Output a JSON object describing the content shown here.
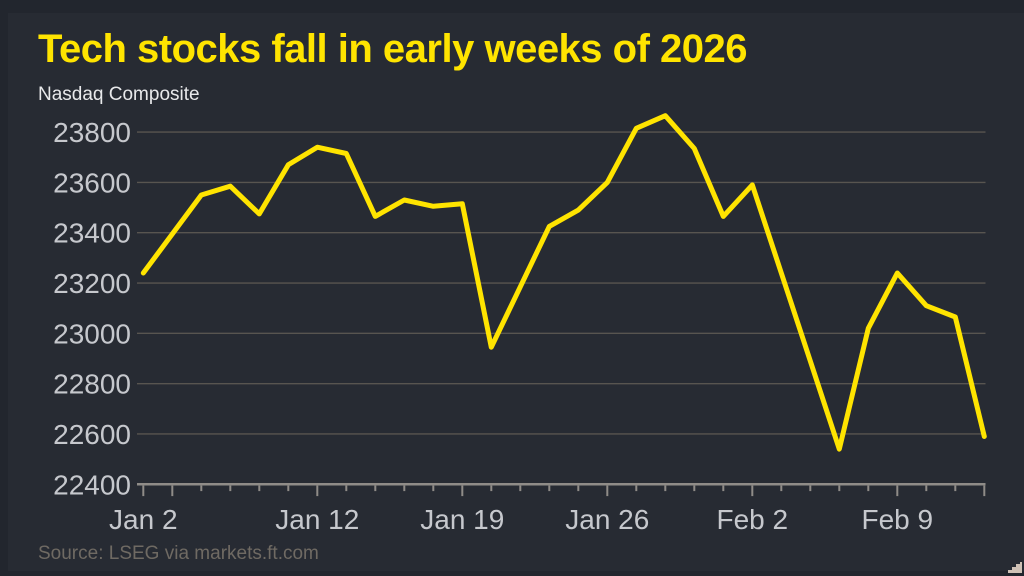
{
  "chart_data": {
    "type": "line",
    "title": "Tech stocks fall in early weeks of 2026",
    "subtitle": "Nasdaq Composite",
    "source": "Source: LSEG via markets.ft.com",
    "x_dates": [
      "Jan 2",
      "Jan 5",
      "Jan 6",
      "Jan 7",
      "Jan 8",
      "Jan 9",
      "Jan 12",
      "Jan 13",
      "Jan 14",
      "Jan 15",
      "Jan 16",
      "Jan 19",
      "Jan 20",
      "Jan 21",
      "Jan 22",
      "Jan 23",
      "Jan 26",
      "Jan 27",
      "Jan 28",
      "Jan 29",
      "Jan 30",
      "Feb 2",
      "Feb 3",
      "Feb 4",
      "Feb 5",
      "Feb 6",
      "Feb 9",
      "Feb 10",
      "Feb 11",
      "Feb 12"
    ],
    "series": [
      {
        "name": "Nasdaq Composite",
        "color": "#ffe400",
        "values": [
          23240,
          23395,
          23550,
          23585,
          23475,
          23670,
          23740,
          23715,
          23465,
          23530,
          23505,
          23515,
          22945,
          23185,
          23425,
          23490,
          23600,
          23815,
          23865,
          23735,
          23465,
          23590,
          23240,
          22890,
          22540,
          23020,
          23240,
          23110,
          23065,
          22590
        ]
      }
    ],
    "ylim": [
      22400,
      23900
    ],
    "y_ticks": [
      22400,
      22600,
      22800,
      23000,
      23200,
      23400,
      23600,
      23800
    ],
    "x_tick_labels": [
      {
        "index": 0,
        "label": "Jan 2"
      },
      {
        "index": 6,
        "label": "Jan 12"
      },
      {
        "index": 11,
        "label": "Jan 19"
      },
      {
        "index": 16,
        "label": "Jan 26"
      },
      {
        "index": 21,
        "label": "Feb 2"
      },
      {
        "index": 26,
        "label": "Feb 9"
      }
    ],
    "major_tick_indices": [
      0,
      1,
      6,
      11,
      16,
      21,
      26,
      29
    ],
    "grid": "horizontal",
    "legend": "none"
  },
  "colors": {
    "background": "#272b33",
    "page_edge": "#22262e",
    "accent_yellow": "#ffe400",
    "gridline": "#585550",
    "axis_line": "#8f8c88",
    "tick_label": "#c6c8cd",
    "subtitle_text": "#e8e9eb",
    "source_text": "#6f6a63",
    "corner_mark": "#cfc1b6"
  }
}
